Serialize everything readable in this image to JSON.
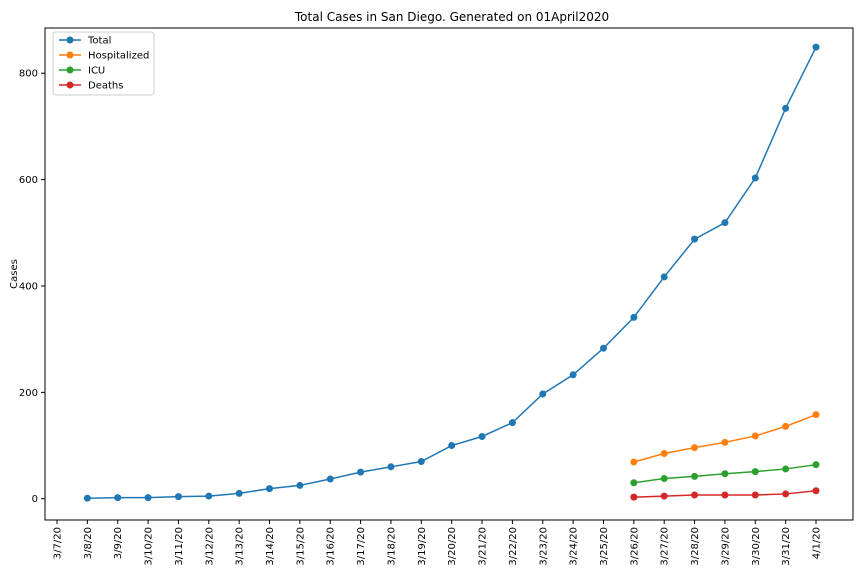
{
  "chart_data": {
    "type": "line",
    "title": "Total Cases in San Diego. Generated on 01April2020",
    "xlabel": "",
    "ylabel": "Cases",
    "categories": [
      "3/7/20",
      "3/8/20",
      "3/9/20",
      "3/10/20",
      "3/11/20",
      "3/12/20",
      "3/13/20",
      "3/14/20",
      "3/15/20",
      "3/16/20",
      "3/17/20",
      "3/18/20",
      "3/19/20",
      "3/20/20",
      "3/21/20",
      "3/22/20",
      "3/23/20",
      "3/24/20",
      "3/25/20",
      "3/26/20",
      "3/27/20",
      "3/28/20",
      "3/29/20",
      "3/30/20",
      "3/31/20",
      "4/1/20"
    ],
    "ylim": [
      -40,
      885
    ],
    "yticks": [
      0,
      200,
      400,
      600,
      800
    ],
    "grid": false,
    "legend": "top-left",
    "series": [
      {
        "name": "Total",
        "color": "#1f77b4",
        "values": [
          null,
          1,
          2,
          2,
          4,
          5,
          10,
          19,
          25,
          37,
          50,
          60,
          70,
          100,
          117,
          143,
          197,
          233,
          283,
          341,
          417,
          488,
          519,
          603,
          734,
          849
        ]
      },
      {
        "name": "Hospitalized",
        "color": "#ff7f0e",
        "values": [
          null,
          null,
          null,
          null,
          null,
          null,
          null,
          null,
          null,
          null,
          null,
          null,
          null,
          null,
          null,
          null,
          null,
          null,
          null,
          69,
          85,
          96,
          106,
          118,
          136,
          158
        ]
      },
      {
        "name": "ICU",
        "color": "#2ca02c",
        "values": [
          null,
          null,
          null,
          null,
          null,
          null,
          null,
          null,
          null,
          null,
          null,
          null,
          null,
          null,
          null,
          null,
          null,
          null,
          null,
          30,
          38,
          42,
          47,
          51,
          56,
          64
        ]
      },
      {
        "name": "Deaths",
        "color": "#d62728",
        "values": [
          null,
          null,
          null,
          null,
          null,
          null,
          null,
          null,
          null,
          null,
          null,
          null,
          null,
          null,
          null,
          null,
          null,
          null,
          null,
          3,
          5,
          7,
          7,
          7,
          9,
          15
        ]
      }
    ]
  }
}
